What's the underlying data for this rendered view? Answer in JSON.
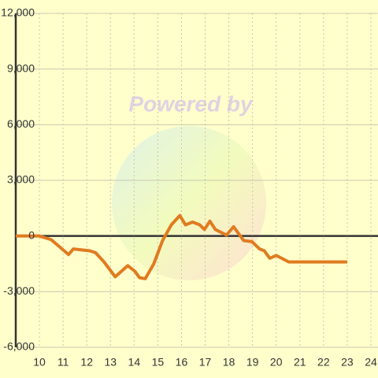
{
  "chart_data": {
    "type": "line",
    "watermark": "Powered by",
    "x": [
      9,
      10,
      10.5,
      11.23,
      11.43,
      12.13,
      12.37,
      12.73,
      13.2,
      13.73,
      14.03,
      14.23,
      14.47,
      14.83,
      15.2,
      15.57,
      15.93,
      16.17,
      16.47,
      16.77,
      16.97,
      17.2,
      17.43,
      17.9,
      18.2,
      18.63,
      18.97,
      19.3,
      19.5,
      19.73,
      20,
      20.53,
      23
    ],
    "series": [
      {
        "color": "#e07b20",
        "values": [
          0,
          0,
          -200,
          -1000,
          -700,
          -800,
          -900,
          -1400,
          -2200,
          -1600,
          -1900,
          -2250,
          -2300,
          -1500,
          -250,
          600,
          1100,
          600,
          750,
          600,
          350,
          800,
          350,
          50,
          500,
          -250,
          -300,
          -700,
          -800,
          -1200,
          -1050,
          -1400,
          -1400
        ]
      }
    ],
    "xlim": [
      9,
      24.3
    ],
    "xticks": [
      10,
      11,
      12,
      13,
      14,
      15,
      16,
      17,
      18,
      19,
      20,
      21,
      22,
      23,
      24
    ],
    "ylim": [
      -6000,
      12000
    ],
    "yticks": [
      {
        "value": -6000,
        "label": "-6,000"
      },
      {
        "value": -3000,
        "label": "-3,000"
      },
      0,
      {
        "value": 3000,
        "label": "3,000"
      },
      {
        "value": 6000,
        "label": "6,000"
      },
      {
        "value": 9000,
        "label": "9,000"
      },
      {
        "value": 12000,
        "label": "12,000"
      }
    ],
    "grid": true
  }
}
